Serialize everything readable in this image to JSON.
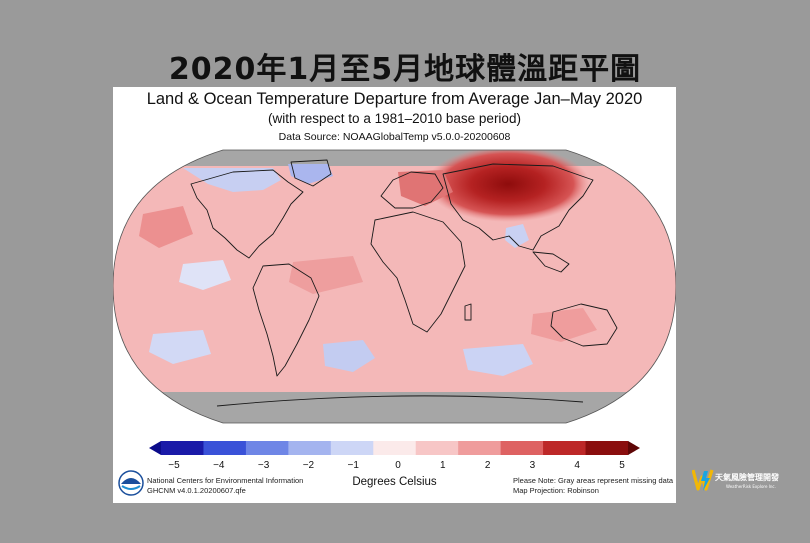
{
  "page_title": "2020年1月至5月地球體溫距平圖",
  "map": {
    "title": "Land & Ocean Temperature Departure from Average Jan–May 2020",
    "subtitle": "(with respect to a 1981–2010 base period)",
    "source": "Data Source: NOAAGlobalTemp v5.0.0-20200608",
    "projection": "Robinson",
    "missing_data_color": "#a6a6a6"
  },
  "colorbar": {
    "ticks": [
      "−5",
      "−4",
      "−3",
      "−2",
      "−1",
      "0",
      "1",
      "2",
      "3",
      "4",
      "5"
    ],
    "units": "Degrees Celsius",
    "colors": [
      "#1a1aa8",
      "#3a52d8",
      "#6f86e6",
      "#a4b4ef",
      "#cdd6f6",
      "#fbeaea",
      "#f7c6c6",
      "#ef9c9c",
      "#de6262",
      "#bd2828",
      "#8a0e0e"
    ]
  },
  "footer": {
    "left_line1": "National Centers for Environmental Information",
    "left_line2": "GHCNM v4.0.1.20200607.qfe",
    "right_line1": "Please Note: Gray areas represent missing data",
    "right_line2": "Map Projection: Robinson"
  },
  "brand": {
    "name": "天氣風險管理開發",
    "sub": "WeatherRisk Explore Inc.",
    "colors": [
      "#f2b705",
      "#1aa5e0"
    ]
  }
}
